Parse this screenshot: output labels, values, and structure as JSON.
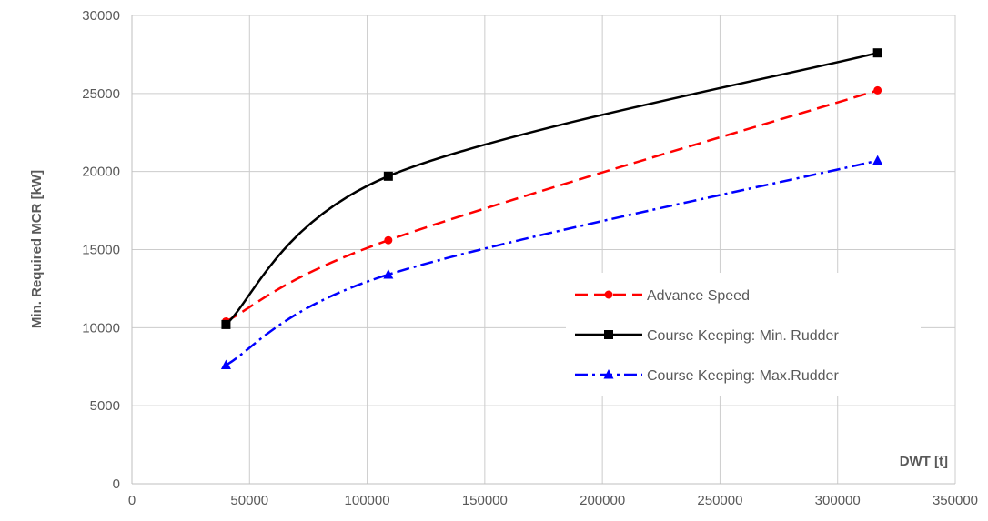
{
  "chart_data": {
    "type": "line",
    "xlabel": "DWT [t]",
    "ylabel": "Min. Required MCR [kW]",
    "xlim": [
      0,
      350000
    ],
    "ylim": [
      0,
      30000
    ],
    "xticks": [
      0,
      50000,
      100000,
      150000,
      200000,
      250000,
      300000,
      350000
    ],
    "yticks": [
      0,
      5000,
      10000,
      15000,
      20000,
      25000,
      30000
    ],
    "xtick_labels": [
      "0",
      "50000",
      "100000",
      "150000",
      "200000",
      "250000",
      "300000",
      "350000"
    ],
    "ytick_labels": [
      "0",
      "5000",
      "10000",
      "15000",
      "20000",
      "25000",
      "30000"
    ],
    "grid": true,
    "legend_position": "right",
    "series": [
      {
        "name": "Advance Speed",
        "color": "#ff0000",
        "line_style": "dashed",
        "marker": "circle",
        "x": [
          40000,
          109000,
          317000
        ],
        "y": [
          10400,
          15600,
          25200
        ]
      },
      {
        "name": "Course Keeping: Min. Rudder",
        "color": "#000000",
        "line_style": "solid",
        "marker": "square",
        "x": [
          40000,
          109000,
          317000
        ],
        "y": [
          10200,
          19700,
          27600
        ]
      },
      {
        "name": "Course Keeping: Max.Rudder",
        "color": "#0000ff",
        "line_style": "dash-dot",
        "marker": "triangle",
        "x": [
          40000,
          109000,
          317000
        ],
        "y": [
          7600,
          13400,
          20700
        ]
      }
    ]
  }
}
